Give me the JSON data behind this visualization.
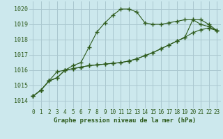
{
  "title": "Graphe pression niveau de la mer (hPa)",
  "background_color": "#cce8ed",
  "grid_color": "#aac8d0",
  "line_color": "#2d5a1b",
  "xlim": [
    -0.5,
    23.5
  ],
  "ylim": [
    1013.5,
    1020.5
  ],
  "yticks": [
    1014,
    1015,
    1016,
    1017,
    1018,
    1019,
    1020
  ],
  "xticks": [
    0,
    1,
    2,
    3,
    4,
    5,
    6,
    7,
    8,
    9,
    10,
    11,
    12,
    13,
    14,
    15,
    16,
    17,
    18,
    19,
    20,
    21,
    22,
    23
  ],
  "series1": [
    1014.3,
    1014.7,
    1015.3,
    1015.5,
    1016.0,
    1016.3,
    1016.5,
    1017.5,
    1018.5,
    1019.1,
    1019.6,
    1020.0,
    1020.0,
    1019.8,
    1019.1,
    1019.0,
    1019.0,
    1019.1,
    1019.2,
    1019.3,
    1019.3,
    1019.0,
    1018.85,
    1018.6
  ],
  "series2": [
    1014.3,
    1014.7,
    1015.3,
    1015.5,
    1016.0,
    1016.1,
    1016.2,
    1016.3,
    1016.35,
    1016.4,
    1016.45,
    1016.5,
    1016.6,
    1016.75,
    1016.95,
    1017.15,
    1017.4,
    1017.65,
    1017.9,
    1018.15,
    1018.45,
    1018.65,
    1018.75,
    1018.6
  ],
  "series3": [
    1014.3,
    1014.7,
    1015.3,
    1015.9,
    1016.0,
    1016.1,
    1016.2,
    1016.3,
    1016.35,
    1016.4,
    1016.45,
    1016.5,
    1016.6,
    1016.75,
    1016.95,
    1017.15,
    1017.4,
    1017.65,
    1017.9,
    1018.15,
    1019.3,
    1019.3,
    1019.0,
    1018.6
  ]
}
